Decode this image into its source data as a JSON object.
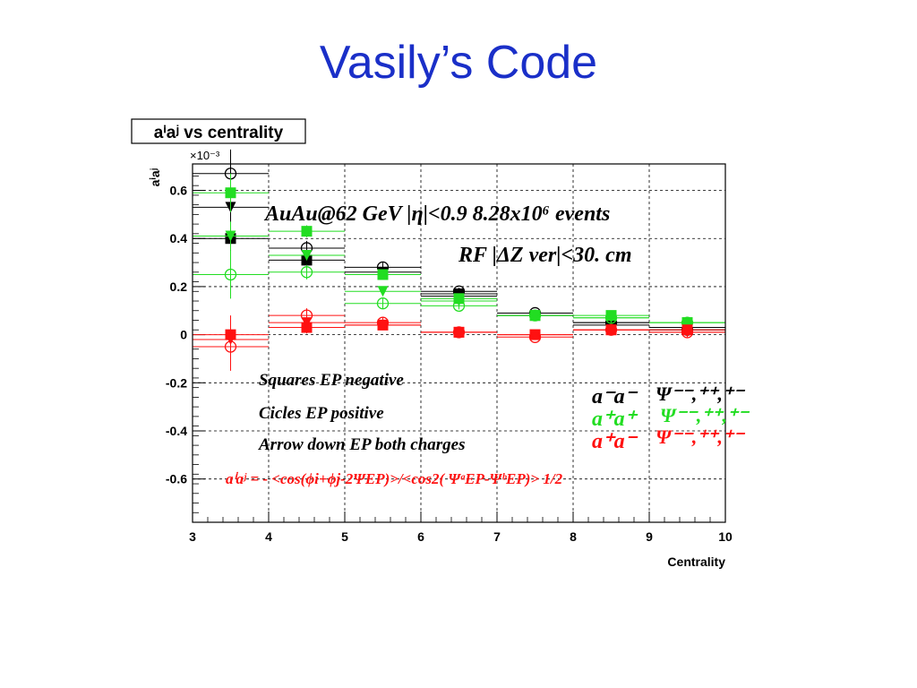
{
  "slide": {
    "title": "Vasily’s Code"
  },
  "chart_data": {
    "type": "scatter",
    "title": "aⁱaʲ vs centrality",
    "xlabel": "Centrality",
    "ylabel": "aⁱaʲ",
    "y_multiplier": "×10⁻³",
    "xlim": [
      3,
      10
    ],
    "ylim": [
      -0.78,
      0.71
    ],
    "x_ticks": [
      "3",
      "4",
      "5",
      "6",
      "7",
      "8",
      "9",
      "10"
    ],
    "y_ticks": [
      "0.6",
      "0.4",
      "0.2",
      "0",
      "-0.2",
      "-0.4",
      "-0.6"
    ],
    "grid": "dashed",
    "x_bins": [
      [
        3,
        4
      ],
      [
        4,
        5
      ],
      [
        5,
        6
      ],
      [
        6,
        7
      ],
      [
        7,
        8
      ],
      [
        8,
        9
      ],
      [
        9,
        10
      ]
    ],
    "x": [
      3.5,
      4.5,
      5.5,
      6.5,
      7.5,
      8.5,
      9.5
    ],
    "series": [
      {
        "charge": "a-a-",
        "color": "#000000",
        "ep": "negative",
        "marker": "square",
        "values": [
          0.4,
          0.31,
          0.26,
          0.17,
          0.08,
          0.05,
          0.03
        ],
        "errors": [
          0.08,
          0.025,
          0.02,
          0.015,
          0.012,
          0.012,
          0.012
        ]
      },
      {
        "charge": "a-a-",
        "color": "#000000",
        "ep": "positive",
        "marker": "circle",
        "values": [
          0.67,
          0.36,
          0.28,
          0.18,
          0.09,
          0.05,
          0.02
        ],
        "errors": [
          0.1,
          0.03,
          0.02,
          0.015,
          0.012,
          0.012,
          0.012
        ]
      },
      {
        "charge": "a-a-",
        "color": "#000000",
        "ep": "both",
        "marker": "triangle-down",
        "values": [
          0.53,
          0.33,
          0.25,
          0.16,
          0.08,
          0.04,
          0.02
        ],
        "errors": [
          0.06,
          0.02,
          0.015,
          0.012,
          0.01,
          0.01,
          0.01
        ]
      },
      {
        "charge": "a+a+",
        "color": "#22dd22",
        "ep": "negative",
        "marker": "square",
        "values": [
          0.59,
          0.43,
          0.25,
          0.15,
          0.08,
          0.08,
          0.05
        ],
        "errors": [
          0.08,
          0.025,
          0.02,
          0.015,
          0.012,
          0.012,
          0.012
        ]
      },
      {
        "charge": "a+a+",
        "color": "#22dd22",
        "ep": "positive",
        "marker": "circle",
        "values": [
          0.25,
          0.26,
          0.13,
          0.12,
          0.08,
          0.07,
          0.05
        ],
        "errors": [
          0.1,
          0.03,
          0.02,
          0.015,
          0.012,
          0.012,
          0.012
        ]
      },
      {
        "charge": "a+a+",
        "color": "#22dd22",
        "ep": "both",
        "marker": "triangle-down",
        "values": [
          0.41,
          0.33,
          0.18,
          0.14,
          0.08,
          0.07,
          0.05
        ],
        "errors": [
          0.06,
          0.02,
          0.015,
          0.012,
          0.01,
          0.01,
          0.01
        ]
      },
      {
        "charge": "a+a-",
        "color": "#ff1111",
        "ep": "negative",
        "marker": "square",
        "values": [
          0.0,
          0.03,
          0.04,
          0.01,
          0.0,
          0.02,
          0.02
        ],
        "errors": [
          0.08,
          0.025,
          0.02,
          0.015,
          0.012,
          0.012,
          0.012
        ]
      },
      {
        "charge": "a+a-",
        "color": "#ff1111",
        "ep": "positive",
        "marker": "circle",
        "values": [
          -0.05,
          0.08,
          0.05,
          0.01,
          -0.01,
          0.02,
          0.01
        ],
        "errors": [
          0.1,
          0.03,
          0.02,
          0.015,
          0.012,
          0.012,
          0.012
        ]
      },
      {
        "charge": "a+a-",
        "color": "#ff1111",
        "ep": "both",
        "marker": "triangle-down",
        "values": [
          -0.02,
          0.05,
          0.04,
          0.01,
          0.0,
          0.02,
          0.01
        ],
        "errors": [
          0.06,
          0.02,
          0.015,
          0.012,
          0.01,
          0.01,
          0.01
        ]
      }
    ],
    "annotations": {
      "header_line1": "AuAu@62 GeV |η|<0.9 8.28x10⁶ events",
      "header_line2": "RF |ΔZ ver|<30. cm",
      "squares_note": "Squares EP negative",
      "circles_note": "Cicles EP positive",
      "arrows_note": "Arrow down EP both charges",
      "formula": "aⁱaʲ = - <cos(ϕi+ϕj-2ΨEP)>/<cos2( ΨᵃEP-ΨᵇEP)> 1/2",
      "legend": [
        {
          "label": "a⁻a⁻",
          "psi": "Ψ⁻⁻,⁺⁺,⁺⁻",
          "color": "#000000"
        },
        {
          "label": "a⁺a⁺",
          "psi": "Ψ⁻⁻,⁺⁺,⁺⁻",
          "color": "#22dd22"
        },
        {
          "label": "a⁺a⁻",
          "psi": "Ψ⁻⁻,⁺⁺,⁺⁻",
          "color": "#ff1111"
        }
      ]
    }
  }
}
